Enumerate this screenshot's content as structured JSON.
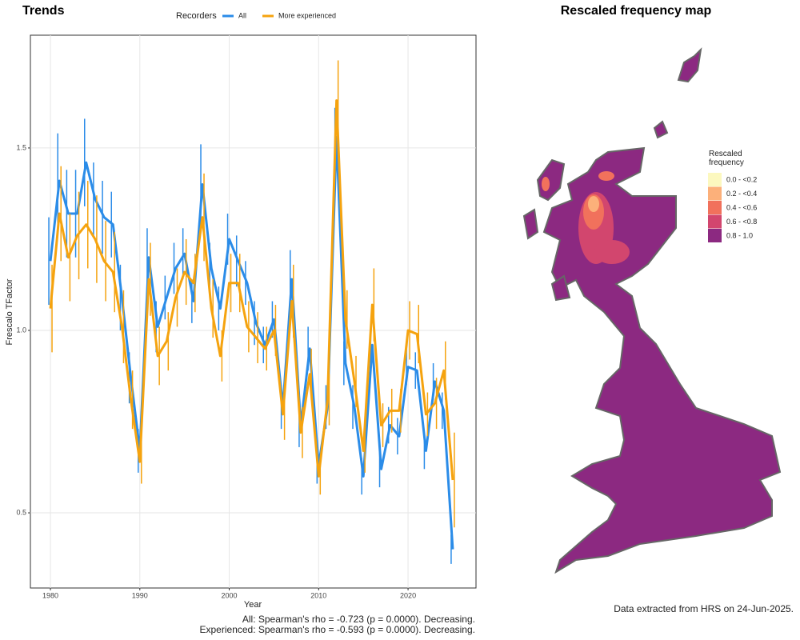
{
  "chart_data": [
    {
      "type": "line",
      "title": "Trends",
      "legend_title": "Recorders",
      "xlabel": "Year",
      "ylabel": "Frescalo TFactor",
      "x": [
        1980,
        1981,
        1982,
        1983,
        1984,
        1985,
        1986,
        1987,
        1988,
        1989,
        1990,
        1991,
        1992,
        1993,
        1994,
        1995,
        1996,
        1997,
        1998,
        1999,
        2000,
        2001,
        2002,
        2003,
        2004,
        2005,
        2006,
        2007,
        2008,
        2009,
        2010,
        2011,
        2012,
        2013,
        2014,
        2015,
        2016,
        2017,
        2018,
        2019,
        2020,
        2021,
        2022,
        2023,
        2024,
        2025
      ],
      "series": [
        {
          "name": "All",
          "color": "#2b8ce8",
          "values": [
            1.19,
            1.41,
            1.32,
            1.32,
            1.46,
            1.36,
            1.31,
            1.29,
            1.09,
            0.87,
            0.67,
            1.2,
            1.01,
            1.09,
            1.17,
            1.21,
            1.08,
            1.4,
            1.17,
            1.06,
            1.25,
            1.19,
            1.13,
            1.02,
            0.96,
            1.03,
            0.79,
            1.14,
            0.74,
            0.95,
            0.63,
            0.79,
            1.53,
            0.91,
            0.79,
            0.6,
            0.96,
            0.62,
            0.74,
            0.71,
            0.9,
            0.89,
            0.67,
            0.86,
            0.78,
            0.4
          ],
          "errors": [
            0.12,
            0.13,
            0.12,
            0.12,
            0.12,
            0.1,
            0.1,
            0.09,
            0.09,
            0.07,
            0.06,
            0.08,
            0.07,
            0.06,
            0.07,
            0.07,
            0.06,
            0.11,
            0.07,
            0.06,
            0.07,
            0.07,
            0.06,
            0.06,
            0.05,
            0.05,
            0.06,
            0.08,
            0.06,
            0.06,
            0.05,
            0.06,
            0.08,
            0.06,
            0.06,
            0.05,
            0.06,
            0.05,
            0.05,
            0.05,
            0.05,
            0.05,
            0.05,
            0.05,
            0.05,
            0.04
          ]
        },
        {
          "name": "More experienced",
          "color": "#f5a30f",
          "values": [
            1.06,
            1.32,
            1.2,
            1.26,
            1.29,
            1.25,
            1.19,
            1.16,
            1.01,
            0.81,
            0.64,
            1.14,
            0.93,
            0.97,
            1.09,
            1.16,
            1.13,
            1.31,
            1.06,
            0.93,
            1.13,
            1.13,
            1.01,
            0.98,
            0.95,
            1.0,
            0.77,
            1.08,
            0.72,
            0.88,
            0.6,
            0.81,
            1.63,
            1.03,
            0.86,
            0.67,
            1.07,
            0.74,
            0.78,
            0.78,
            1.0,
            0.99,
            0.77,
            0.8,
            0.89,
            0.59
          ],
          "errors": [
            0.12,
            0.13,
            0.12,
            0.12,
            0.12,
            0.12,
            0.11,
            0.11,
            0.1,
            0.08,
            0.06,
            0.1,
            0.08,
            0.08,
            0.08,
            0.09,
            0.08,
            0.12,
            0.08,
            0.07,
            0.08,
            0.08,
            0.07,
            0.07,
            0.06,
            0.07,
            0.07,
            0.1,
            0.07,
            0.07,
            0.05,
            0.07,
            0.11,
            0.08,
            0.07,
            0.06,
            0.1,
            0.06,
            0.06,
            0.06,
            0.08,
            0.08,
            0.06,
            0.07,
            0.08,
            0.13
          ]
        }
      ],
      "xlim": [
        1977.76,
        2027.6
      ],
      "ylim": [
        0.294,
        1.809
      ],
      "xticks": [
        1980,
        1990,
        2000,
        2010,
        2020
      ],
      "yticks": [
        0.5,
        {
          "value": 1,
          "label": "1.0"
        },
        1.5
      ],
      "grid": true,
      "annotations": [
        "All: Spearman's rho = -0.723 (p = 0.0000). Decreasing.",
        "Experienced: Spearman's rho = -0.593 (p = 0.0000). Decreasing."
      ]
    },
    {
      "type": "map",
      "title": "Rescaled frequency map",
      "legend_title": "Rescaled frequency",
      "legend": [
        {
          "label": "0.0 - <0.2",
          "color": "#fcf8bf"
        },
        {
          "label": "0.2 - <0.4",
          "color": "#fcb07a"
        },
        {
          "label": "0.4 - <0.6",
          "color": "#f1715c"
        },
        {
          "label": "0.6 - <0.8",
          "color": "#d2466e"
        },
        {
          "label": "0.8 - 1.0",
          "color": "#8c2981"
        }
      ],
      "note": "Data extracted from HRS on 24-Jun-2025."
    }
  ]
}
